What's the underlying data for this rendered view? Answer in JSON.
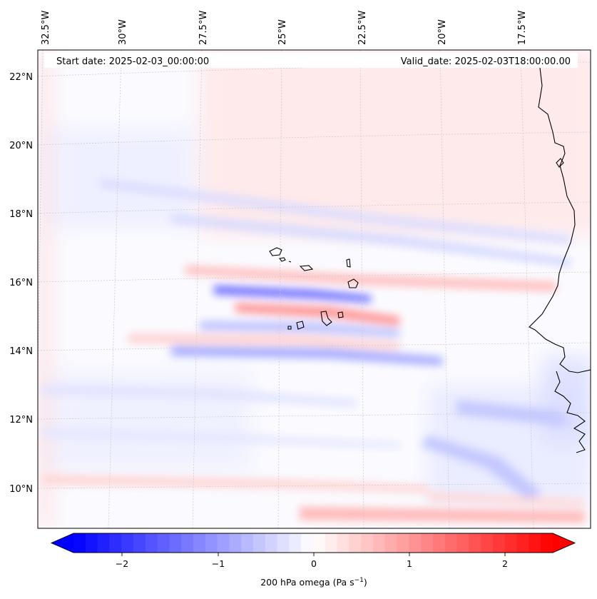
{
  "map": {
    "start_date_label": "Start date: 2025-02-03_00:00:00",
    "valid_date_label": "Valid_date: 2025-02-03T18:00:00.00",
    "lon_labels": [
      "32.5°W",
      "30°W",
      "27.5°W",
      "25°W",
      "22.5°W",
      "20°W",
      "17.5°W"
    ],
    "lat_labels": [
      "22°N",
      "20°N",
      "18°N",
      "16°N",
      "14°N",
      "12°N",
      "10°N"
    ],
    "colorbar": {
      "title_main": "200 hPa omega (Pa s",
      "title_sup": "−1",
      "title_end": ")",
      "ticks": [
        "−2",
        "−1",
        "0",
        "1",
        "2"
      ],
      "range": [
        -2.5,
        2.5
      ],
      "colors": {
        "neg": "#0000ff",
        "mid": "#ffffff",
        "pos": "#ff0000"
      }
    }
  }
}
